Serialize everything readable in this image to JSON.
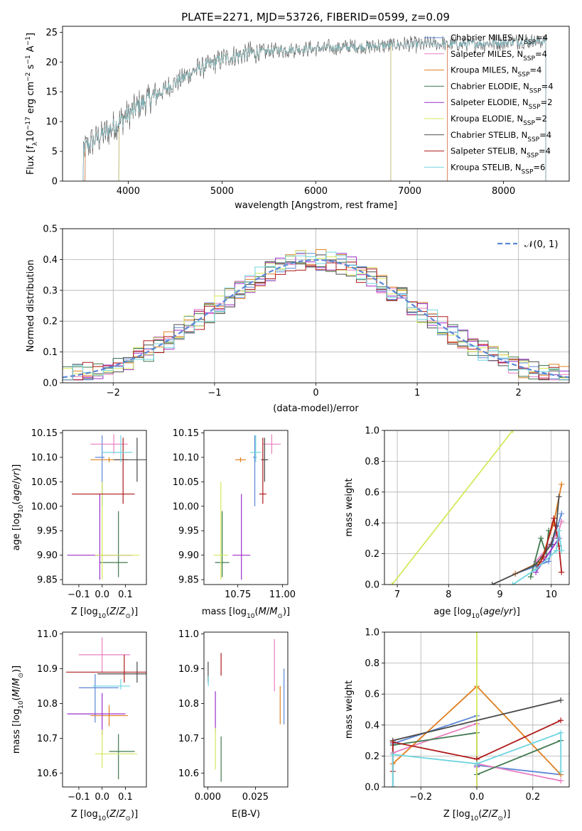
{
  "figure_title": "PLATE=2271, MJD=53726, FIBERID=0599, z=0.09",
  "colors": {
    "Chabrier MILES": "#5b87d6",
    "Salpeter MILES": "#e87fc1",
    "Kroupa MILES": "#e07f1f",
    "Chabrier ELODIE": "#3f7a4f",
    "Salpeter ELODIE": "#9b2fc9",
    "Kroupa ELODIE": "#d5e85a",
    "Chabrier STELIB": "#4a4a4a",
    "Salpeter STELIB": "#b01a1a",
    "Kroupa STELIB": "#6fd5df",
    "gaussian": "#5b87d6"
  },
  "chart_data": [
    {
      "id": "spectrum",
      "type": "line",
      "title": "PLATE=2271, MJD=53726, FIBERID=0599, z=0.09",
      "xlabel": "wavelength [Angstrom, rest frame]",
      "ylabel": "Flux [f_λ 10^-17 erg cm^-2 s^-1 A^-1]",
      "xlim": [
        3300,
        8700
      ],
      "ylim": [
        0,
        26
      ],
      "xticks": [
        4000,
        5000,
        6000,
        7000,
        8000
      ],
      "yticks": [
        0,
        5,
        10,
        15,
        20,
        25
      ],
      "legend_position": "top-right",
      "legend": [
        {
          "base": "Chabrier MILES, N",
          "sub": "SSP",
          "tail": "=4"
        },
        {
          "base": "Salpeter MILES, N",
          "sub": "SSP",
          "tail": "=4"
        },
        {
          "base": "Kroupa MILES, N",
          "sub": "SSP",
          "tail": "=4"
        },
        {
          "base": "Chabrier ELODIE, N",
          "sub": "SSP",
          "tail": "=4"
        },
        {
          "base": "Salpeter ELODIE, N",
          "sub": "SSP",
          "tail": "=2"
        },
        {
          "base": "Kroupa ELODIE, N",
          "sub": "SSP",
          "tail": "=2"
        },
        {
          "base": "Chabrier STELIB, N",
          "sub": "SSP",
          "tail": "=4"
        },
        {
          "base": "Salpeter STELIB, N",
          "sub": "SSP",
          "tail": "=4"
        },
        {
          "base": "Kroupa STELIB, N",
          "sub": "SSP",
          "tail": "=6"
        }
      ],
      "continuum": [
        [
          3520,
          5.5
        ],
        [
          3700,
          7.5
        ],
        [
          3950,
          10.5
        ],
        [
          4100,
          12.5
        ],
        [
          4400,
          15.5
        ],
        [
          4700,
          18.5
        ],
        [
          5000,
          20.5
        ],
        [
          5300,
          21.5
        ],
        [
          5600,
          22.0
        ],
        [
          6000,
          22.3
        ],
        [
          6400,
          22.5
        ],
        [
          6800,
          22.8
        ],
        [
          7200,
          23.0
        ],
        [
          7600,
          23.0
        ],
        [
          8000,
          23.3
        ],
        [
          8300,
          23.5
        ],
        [
          8450,
          23.5
        ]
      ],
      "series_ranges": [
        {
          "name": "Chabrier MILES",
          "x": [
            3540,
            7400
          ]
        },
        {
          "name": "Salpeter MILES",
          "x": [
            3540,
            7400
          ]
        },
        {
          "name": "Kroupa MILES",
          "x": [
            3540,
            7400
          ]
        },
        {
          "name": "Chabrier ELODIE",
          "x": [
            3900,
            6800
          ]
        },
        {
          "name": "Salpeter ELODIE",
          "x": [
            3900,
            6800
          ]
        },
        {
          "name": "Kroupa ELODIE",
          "x": [
            3900,
            6800
          ]
        },
        {
          "name": "Chabrier STELIB",
          "x": [
            3520,
            8450
          ]
        },
        {
          "name": "Salpeter STELIB",
          "x": [
            3520,
            8450
          ]
        },
        {
          "name": "Kroupa STELIB",
          "x": [
            3520,
            8450
          ]
        }
      ]
    },
    {
      "id": "residual-histogram",
      "type": "bar",
      "xlabel": "(data-model)/error",
      "ylabel": "Normed distribution",
      "xlim": [
        -2.5,
        2.5
      ],
      "ylim": [
        0,
        0.5
      ],
      "xticks": [
        -2,
        -1,
        0,
        1,
        2
      ],
      "yticks": [
        0.0,
        0.1,
        0.2,
        0.3,
        0.4,
        0.5
      ],
      "grid": true,
      "legend_position": "top-right",
      "legend": [
        "𝒩(0, 1)"
      ],
      "bin_width": 0.1,
      "description": "step histograms of normalized residuals for all nine models, with a standard normal curve overlay"
    },
    {
      "id": "age-vs-Z",
      "type": "scatter",
      "xlabel": "Z [log10(Z/Z⊙)]",
      "ylabel": "age [log10(age/yr)]",
      "xlim": [
        -0.17,
        0.19
      ],
      "ylim": [
        9.84,
        10.155
      ],
      "xticks": [
        -0.1,
        0.0,
        0.1
      ],
      "yticks": [
        9.85,
        9.9,
        9.95,
        10.0,
        10.05,
        10.1,
        10.15
      ],
      "points": [
        {
          "name": "Chabrier MILES",
          "x": 0.0,
          "xerr": [
            0.03,
            0.01
          ],
          "y": 10.1,
          "yerr": [
            0.1,
            0.045
          ]
        },
        {
          "name": "Salpeter MILES",
          "x": 0.05,
          "xerr": [
            0.1,
            0.06
          ],
          "y": 10.127,
          "yerr": [
            0.02,
            0.02
          ]
        },
        {
          "name": "Kroupa MILES",
          "x": 0.03,
          "xerr": [
            0.08,
            0.08
          ],
          "y": 10.095,
          "yerr": [
            0.005,
            0.005
          ]
        },
        {
          "name": "Chabrier ELODIE",
          "x": 0.07,
          "xerr": [
            0.08,
            0.04
          ],
          "y": 9.885,
          "yerr": [
            0.03,
            0.105
          ]
        },
        {
          "name": "Salpeter ELODIE",
          "x": -0.01,
          "xerr": [
            0.14,
            0.14
          ],
          "y": 9.9,
          "yerr": [
            0.05,
            0.125
          ]
        },
        {
          "name": "Kroupa ELODIE",
          "x": 0.0,
          "xerr": [
            0.03,
            0.16
          ],
          "y": 9.9,
          "yerr": [
            0.05,
            0.15
          ]
        },
        {
          "name": "Chabrier STELIB",
          "x": 0.15,
          "xerr": [
            0.1,
            0.05
          ],
          "y": 10.095,
          "yerr": [
            0.045,
            0.045
          ]
        },
        {
          "name": "Salpeter STELIB",
          "x": 0.09,
          "xerr": [
            0.22,
            0.05
          ],
          "y": 10.025,
          "yerr": [
            0.02,
            0.115
          ]
        },
        {
          "name": "Kroupa STELIB",
          "x": 0.08,
          "xerr": [
            0.08,
            0.05
          ],
          "y": 10.11,
          "yerr": [
            0.02,
            0.035
          ]
        }
      ]
    },
    {
      "id": "age-vs-mass",
      "type": "scatter",
      "xlabel": "mass [log10(M/M⊙)]",
      "ylabel": "",
      "xlim": [
        10.56,
        11.03
      ],
      "ylim": [
        9.84,
        10.155
      ],
      "xticks": [
        10.75,
        11.0
      ],
      "xticklabels": [
        "10.75",
        "11.00"
      ],
      "yticks": [
        9.85,
        9.9,
        9.95,
        10.0,
        10.05,
        10.1,
        10.15
      ],
      "points": [
        {
          "name": "Chabrier MILES",
          "x": 10.845,
          "xerr": [
            0.01,
            0.01
          ],
          "y": 10.1,
          "yerr": [
            0.1,
            0.045
          ]
        },
        {
          "name": "Salpeter MILES",
          "x": 10.94,
          "xerr": [
            0.05,
            0.05
          ],
          "y": 10.127,
          "yerr": [
            0.02,
            0.02
          ]
        },
        {
          "name": "Kroupa MILES",
          "x": 10.765,
          "xerr": [
            0.03,
            0.03
          ],
          "y": 10.095,
          "yerr": [
            0.005,
            0.005
          ]
        },
        {
          "name": "Chabrier ELODIE",
          "x": 10.662,
          "xerr": [
            0.04,
            0.04
          ],
          "y": 9.885,
          "yerr": [
            0.03,
            0.105
          ]
        },
        {
          "name": "Salpeter ELODIE",
          "x": 10.77,
          "xerr": [
            0.05,
            0.05
          ],
          "y": 9.9,
          "yerr": [
            0.05,
            0.125
          ]
        },
        {
          "name": "Kroupa ELODIE",
          "x": 10.655,
          "xerr": [
            0.04,
            0.04
          ],
          "y": 9.9,
          "yerr": [
            0.05,
            0.15
          ]
        },
        {
          "name": "Chabrier STELIB",
          "x": 10.9,
          "xerr": [
            0.02,
            0.02
          ],
          "y": 10.095,
          "yerr": [
            0.045,
            0.045
          ]
        },
        {
          "name": "Salpeter STELIB",
          "x": 10.89,
          "xerr": [
            0.02,
            0.02
          ],
          "y": 10.025,
          "yerr": [
            0.02,
            0.115
          ]
        },
        {
          "name": "Kroupa STELIB",
          "x": 10.85,
          "xerr": [
            0.03,
            0.03
          ],
          "y": 10.11,
          "yerr": [
            0.02,
            0.035
          ]
        }
      ]
    },
    {
      "id": "cumulative-mass-weight-vs-age",
      "type": "line",
      "xlabel": "age [log10(age/yr)]",
      "ylabel": "mass weight",
      "xlim": [
        6.75,
        10.35
      ],
      "ylim": [
        0,
        1
      ],
      "xticks": [
        7,
        8,
        9,
        10
      ],
      "yticks": [
        0.0,
        0.2,
        0.4,
        0.6,
        0.8,
        1.0
      ],
      "grid": true,
      "series": [
        {
          "name": "Chabrier MILES",
          "x": [
            9.3,
            9.95,
            10.05,
            10.2
          ],
          "y": [
            0.07,
            0.15,
            0.3,
            0.46
          ]
        },
        {
          "name": "Salpeter MILES",
          "x": [
            9.7,
            9.95,
            10.15,
            10.2
          ],
          "y": [
            0.15,
            0.25,
            0.35,
            0.41
          ]
        },
        {
          "name": "Kroupa MILES",
          "x": [
            9.3,
            9.8,
            10.05,
            10.2
          ],
          "y": [
            0.07,
            0.15,
            0.4,
            0.65
          ]
        },
        {
          "name": "Chabrier ELODIE",
          "x": [
            9.6,
            9.8,
            9.9,
            9.95
          ],
          "y": [
            0.05,
            0.3,
            0.2,
            0.35
          ]
        },
        {
          "name": "Salpeter ELODIE",
          "x": [
            9.7,
            10.15
          ],
          "y": [
            0.08,
            0.3
          ]
        },
        {
          "name": "Kroupa ELODIE",
          "x": [
            6.9,
            9.25
          ],
          "y": [
            0.0,
            1.0
          ]
        },
        {
          "name": "Chabrier STELIB",
          "x": [
            8.85,
            9.7,
            10.0,
            10.1,
            10.15
          ],
          "y": [
            0.0,
            0.13,
            0.26,
            0.38,
            0.57
          ]
        },
        {
          "name": "Salpeter STELIB",
          "x": [
            9.7,
            9.85,
            10.05,
            10.15,
            10.2
          ],
          "y": [
            0.1,
            0.18,
            0.43,
            0.25,
            0.08
          ]
        },
        {
          "name": "Kroupa STELIB",
          "x": [
            9.25,
            9.7,
            10.1,
            10.15,
            10.2
          ],
          "y": [
            0.0,
            0.1,
            0.22,
            0.35,
            0.22
          ]
        }
      ]
    },
    {
      "id": "mass-vs-Z",
      "type": "scatter",
      "xlabel": "Z [log10(Z/Z⊙)]",
      "ylabel": "mass [log10(M/M⊙)]",
      "xlim": [
        -0.17,
        0.19
      ],
      "ylim": [
        10.56,
        11.005
      ],
      "xticks": [
        -0.1,
        0.0,
        0.1
      ],
      "yticks": [
        10.6,
        10.7,
        10.8,
        10.9,
        11.0
      ],
      "points": [
        {
          "name": "Chabrier MILES",
          "x": -0.03,
          "xerr": [
            0.07,
            0.1
          ],
          "y": 10.845,
          "yerr": [
            0.1,
            0.04
          ]
        },
        {
          "name": "Salpeter MILES",
          "x": 0.0,
          "xerr": [
            0.1,
            0.12
          ],
          "y": 10.94,
          "yerr": [
            0.05,
            0.05
          ]
        },
        {
          "name": "Kroupa MILES",
          "x": 0.03,
          "xerr": [
            0.08,
            0.08
          ],
          "y": 10.765,
          "yerr": [
            0.03,
            0.03
          ]
        },
        {
          "name": "Chabrier ELODIE",
          "x": 0.07,
          "xerr": [
            0.04,
            0.07
          ],
          "y": 10.662,
          "yerr": [
            0.08,
            0.05
          ]
        },
        {
          "name": "Salpeter ELODIE",
          "x": 0.0,
          "xerr": [
            0.15,
            0.1
          ],
          "y": 10.77,
          "yerr": [
            0.06,
            0.06
          ]
        },
        {
          "name": "Kroupa ELODIE",
          "x": 0.0,
          "xerr": [
            0.03,
            0.15
          ],
          "y": 10.655,
          "yerr": [
            0.04,
            0.07
          ]
        },
        {
          "name": "Chabrier STELIB",
          "x": 0.15,
          "xerr": [
            0.17,
            0.05
          ],
          "y": 10.885,
          "yerr": [
            0.025,
            0.035
          ]
        },
        {
          "name": "Salpeter STELIB",
          "x": 0.095,
          "xerr": [
            0.25,
            0.1
          ],
          "y": 10.89,
          "yerr": [
            0.03,
            0.05
          ]
        },
        {
          "name": "Kroupa STELIB",
          "x": 0.08,
          "xerr": [
            0.12,
            0.04
          ],
          "y": 10.85,
          "yerr": [
            0.01,
            0.02
          ]
        }
      ]
    },
    {
      "id": "mass-vs-ebv",
      "type": "scatter",
      "xlabel": "E(B-V)",
      "ylabel": "",
      "xlim": [
        -0.002,
        0.042
      ],
      "ylim": [
        10.56,
        11.005
      ],
      "xticks": [
        0.0,
        0.025
      ],
      "xticklabels": [
        "0.000",
        "0.025"
      ],
      "yticks": [
        10.6,
        10.7,
        10.8,
        10.9,
        11.0
      ],
      "points": [
        {
          "name": "Chabrier MILES",
          "x": 0.04,
          "y": 10.83,
          "yerr": [
            0.09,
            0.07
          ]
        },
        {
          "name": "Salpeter MILES",
          "x": 0.035,
          "y": 10.915,
          "yerr": [
            0.08,
            0.07
          ]
        },
        {
          "name": "Kroupa MILES",
          "x": 0.038,
          "y": 10.8,
          "yerr": [
            0.06,
            0.05
          ]
        },
        {
          "name": "Chabrier ELODIE",
          "x": 0.007,
          "y": 10.655,
          "yerr": [
            0.08,
            0.05
          ]
        },
        {
          "name": "Salpeter ELODIE",
          "x": 0.004,
          "y": 10.775,
          "yerr": [
            0.06,
            0.06
          ]
        },
        {
          "name": "Kroupa ELODIE",
          "x": 0.004,
          "y": 10.67,
          "yerr": [
            0.06,
            0.06
          ]
        },
        {
          "name": "Chabrier STELIB",
          "x": 0.0002,
          "y": 10.89,
          "yerr": [
            0.03,
            0.03
          ]
        },
        {
          "name": "Salpeter STELIB",
          "x": 0.007,
          "y": 10.91,
          "yerr": [
            0.03,
            0.035
          ]
        },
        {
          "name": "Kroupa STELIB",
          "x": 0.0003,
          "y": 10.86,
          "yerr": [
            0.01,
            0.02
          ]
        }
      ]
    },
    {
      "id": "cumulative-mass-weight-vs-Z",
      "type": "line",
      "xlabel": "Z [log10(Z/Z⊙)]",
      "ylabel": "mass weight",
      "xlim": [
        -0.33,
        0.33
      ],
      "ylim": [
        0,
        1
      ],
      "xticks": [
        -0.2,
        0.0,
        0.2
      ],
      "yticks": [
        0.0,
        0.2,
        0.4,
        0.6,
        0.8,
        1.0
      ],
      "grid": true,
      "series": [
        {
          "name": "Chabrier MILES",
          "x": [
            -0.3,
            0.0,
            0.0,
            0.3
          ],
          "y": [
            0.28,
            0.46,
            0.14,
            0.08
          ]
        },
        {
          "name": "Salpeter MILES",
          "x": [
            -0.3,
            0.0,
            0.0,
            0.3
          ],
          "y": [
            0.22,
            0.41,
            0.15,
            0.04
          ]
        },
        {
          "name": "Kroupa MILES",
          "x": [
            -0.3,
            0.0,
            0.3
          ],
          "y": [
            0.15,
            0.65,
            0.08
          ]
        },
        {
          "name": "Chabrier ELODIE",
          "x": [
            -0.3,
            0.0,
            0.0,
            0.3
          ],
          "y": [
            0.27,
            0.35,
            0.08,
            0.3
          ]
        },
        {
          "name": "Salpeter ELODIE",
          "x": [
            0.0,
            0.0
          ],
          "y": [
            0.0,
            0.13
          ]
        },
        {
          "name": "Kroupa ELODIE",
          "x": [
            0.0,
            0.0
          ],
          "y": [
            0.0,
            1.0
          ]
        },
        {
          "name": "Chabrier STELIB",
          "x": [
            -0.3,
            -0.3,
            0.3
          ],
          "y": [
            0.0,
            0.3,
            0.56
          ]
        },
        {
          "name": "Salpeter STELIB",
          "x": [
            -0.3,
            -0.3,
            0.0,
            0.3
          ],
          "y": [
            0.1,
            0.29,
            0.18,
            0.43
          ]
        },
        {
          "name": "Kroupa STELIB",
          "x": [
            -0.3,
            -0.3,
            0.0,
            0.3,
            0.3
          ],
          "y": [
            0.0,
            0.21,
            0.15,
            0.35,
            0.1
          ]
        }
      ]
    }
  ]
}
